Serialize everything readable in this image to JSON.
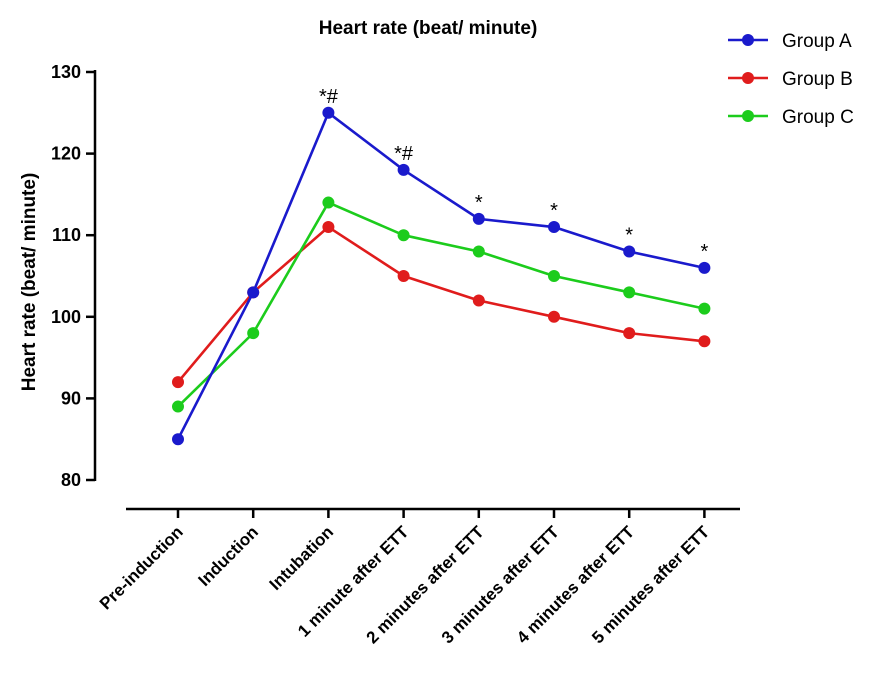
{
  "chart_data": {
    "type": "line",
    "title": "Heart rate (beat/ minute)",
    "xlabel": "",
    "ylabel": "Heart rate (beat/ minute)",
    "categories": [
      "Pre-induction",
      "Induction",
      "Intubation",
      "1 minute after ETT",
      "2 minutes after ETT",
      "3 minutes after ETT",
      "4 minutes after ETT",
      "5 minutes after ETT"
    ],
    "ylim": [
      80,
      130
    ],
    "yticks": [
      80,
      90,
      100,
      110,
      120,
      130
    ],
    "grid": false,
    "legend_position": "top-right",
    "series": [
      {
        "name": "Group A",
        "color": "#1a1acc",
        "values": [
          85,
          103,
          125,
          118,
          112,
          111,
          108,
          106
        ]
      },
      {
        "name": "Group B",
        "color": "#e01c1c",
        "values": [
          92,
          103,
          111,
          105,
          102,
          100,
          98,
          97
        ]
      },
      {
        "name": "Group C",
        "color": "#1ccc1c",
        "values": [
          89,
          98,
          114,
          110,
          108,
          105,
          103,
          101
        ]
      }
    ],
    "annotations": [
      {
        "series": "Group A",
        "category_index": 2,
        "text": "*#"
      },
      {
        "series": "Group A",
        "category_index": 3,
        "text": "*#"
      },
      {
        "series": "Group A",
        "category_index": 4,
        "text": "*"
      },
      {
        "series": "Group A",
        "category_index": 5,
        "text": "*"
      },
      {
        "series": "Group A",
        "category_index": 6,
        "text": "*"
      },
      {
        "series": "Group A",
        "category_index": 7,
        "text": "*"
      }
    ]
  }
}
